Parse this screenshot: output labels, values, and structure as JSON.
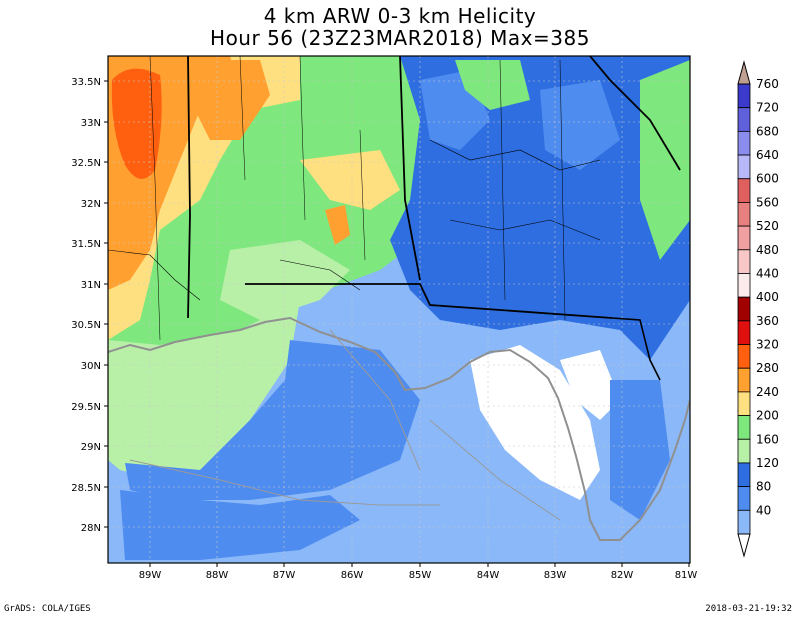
{
  "title_line1": "4 km ARW 0-3 km Helicity",
  "title_line2": "Hour 56 (23Z23MAR2018) Max=385",
  "lat_labels": [
    "33.5N",
    "33N",
    "32.5N",
    "32N",
    "31.5N",
    "31N",
    "30.5N",
    "30N",
    "29.5N",
    "29N",
    "28.5N",
    "28N"
  ],
  "lon_labels": [
    "89W",
    "88W",
    "87W",
    "86W",
    "85W",
    "84W",
    "83W",
    "82W",
    "81W"
  ],
  "colorbar": {
    "labels": [
      "760",
      "720",
      "680",
      "640",
      "600",
      "560",
      "520",
      "480",
      "440",
      "400",
      "360",
      "320",
      "280",
      "240",
      "200",
      "160",
      "120",
      "80",
      "40"
    ],
    "colors": [
      "#3a3acc",
      "#6060dd",
      "#8c8cee",
      "#b8b8f8",
      "#e06060",
      "#e88080",
      "#f0a0a0",
      "#f8c8c8",
      "#fcebeb",
      "#a00000",
      "#e01010",
      "#ff6010",
      "#ffa030",
      "#ffe080",
      "#7ee87e",
      "#b8f0a8",
      "#2e6ee0",
      "#4f8cf0",
      "#8ab8f8"
    ]
  },
  "footer_left": "GrADS: COLA/IGES",
  "footer_right": "2018-03-21-19:32"
}
